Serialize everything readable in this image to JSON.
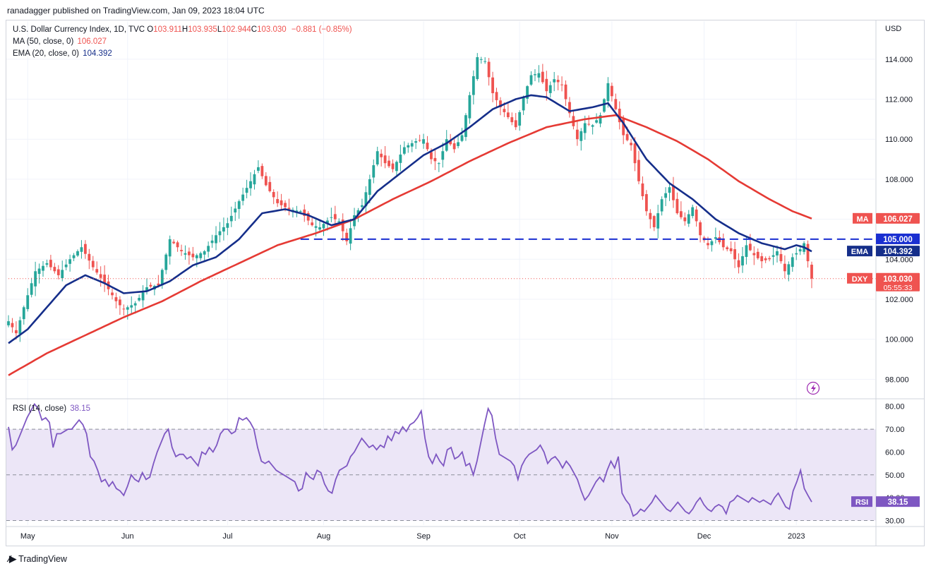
{
  "header": {
    "publisher": "ranadagger published on TradingView.com, Jan 09, 2023 18:04 UTC"
  },
  "legend": {
    "symbol": "U.S. Dollar Currency Index, 1D, TVC",
    "ohlc": [
      {
        "k": "O",
        "v": "103.911"
      },
      {
        "k": "H",
        "v": "103.935"
      },
      {
        "k": "L",
        "v": "102.944"
      },
      {
        "k": "C",
        "v": "103.030"
      }
    ],
    "change": "−0.881 (−0.85%)",
    "ma_label": "MA (50, close, 0)",
    "ma_value": "106.027",
    "ema_label": "EMA (20, close, 0)",
    "ema_value": "104.392",
    "rsi_label": "RSI (14, close)",
    "rsi_value": "38.15"
  },
  "footer": {
    "brand": "TradingView"
  },
  "colors": {
    "up": "#26a69a",
    "down": "#ef5350",
    "ema": "#152e8a",
    "ma": "#e53a34",
    "hline": "#1a2fd1",
    "rsi": "#7e57c2",
    "rsi_band": "#ece6f7"
  },
  "chart_data": [
    {
      "type": "candlestick",
      "currency": "USD",
      "y_ticks": [
        98,
        100,
        102,
        104,
        106,
        108,
        110,
        112,
        114
      ],
      "y_tick_labels": [
        "98.000",
        "100.000",
        "102.000",
        "104.000",
        "106.000",
        "108.000",
        "110.000",
        "112.000",
        "114.000"
      ],
      "ylim": [
        97.2,
        115.9
      ],
      "x_ticks": [
        {
          "label": "May",
          "day": 5
        },
        {
          "label": "Jun",
          "day": 31
        },
        {
          "label": "Jul",
          "day": 57
        },
        {
          "label": "Aug",
          "day": 82
        },
        {
          "label": "Sep",
          "day": 108
        },
        {
          "label": "Oct",
          "day": 133
        },
        {
          "label": "Nov",
          "day": 157
        },
        {
          "label": "Dec",
          "day": 181
        },
        {
          "label": "2023",
          "day": 205
        }
      ],
      "horizontal_line": {
        "value": 105.0,
        "label": "105.000",
        "style": "dashed",
        "from_day": 76
      },
      "price_badges": [
        {
          "name": "MA",
          "value": "106.027",
          "y": 106.027,
          "color": "#ef5350"
        },
        {
          "name": "EMA",
          "value": "104.392",
          "y": 104.392,
          "color": "#152e8a"
        },
        {
          "name": "DXY",
          "value": "103.030",
          "y": 103.03,
          "color": "#ef5350",
          "sub": "05:55:33"
        }
      ],
      "close_anchors": [
        [
          0,
          100.9
        ],
        [
          2,
          100.3
        ],
        [
          4,
          101.6
        ],
        [
          7,
          103.4
        ],
        [
          10,
          103.8
        ],
        [
          13,
          103.2
        ],
        [
          16,
          104.0
        ],
        [
          19,
          104.6
        ],
        [
          22,
          103.6
        ],
        [
          25,
          102.8
        ],
        [
          28,
          101.9
        ],
        [
          30,
          101.5
        ],
        [
          33,
          101.8
        ],
        [
          36,
          102.6
        ],
        [
          39,
          102.7
        ],
        [
          42,
          105.0
        ],
        [
          45,
          104.4
        ],
        [
          48,
          104.1
        ],
        [
          51,
          104.4
        ],
        [
          54,
          105.2
        ],
        [
          57,
          105.8
        ],
        [
          60,
          106.9
        ],
        [
          63,
          107.9
        ],
        [
          65,
          108.6
        ],
        [
          67,
          107.7
        ],
        [
          70,
          106.8
        ],
        [
          73,
          106.5
        ],
        [
          76,
          106.4
        ],
        [
          79,
          105.7
        ],
        [
          81,
          105.6
        ],
        [
          84,
          106.1
        ],
        [
          86,
          105.9
        ],
        [
          88,
          104.9
        ],
        [
          90,
          106.2
        ],
        [
          92,
          106.7
        ],
        [
          94,
          108.0
        ],
        [
          96,
          109.4
        ],
        [
          98,
          108.8
        ],
        [
          100,
          108.5
        ],
        [
          103,
          109.6
        ],
        [
          106,
          109.9
        ],
        [
          108,
          110.0
        ],
        [
          110,
          109.0
        ],
        [
          112,
          108.8
        ],
        [
          114,
          110.0
        ],
        [
          116,
          109.5
        ],
        [
          118,
          110.2
        ],
        [
          120,
          112.2
        ],
        [
          122,
          114.1
        ],
        [
          124,
          113.9
        ],
        [
          126,
          112.3
        ],
        [
          128,
          111.6
        ],
        [
          130,
          111.1
        ],
        [
          132,
          110.6
        ],
        [
          134,
          112.1
        ],
        [
          136,
          113.2
        ],
        [
          138,
          113.3
        ],
        [
          140,
          112.4
        ],
        [
          142,
          113.0
        ],
        [
          144,
          112.7
        ],
        [
          146,
          111.3
        ],
        [
          148,
          110.0
        ],
        [
          150,
          110.8
        ],
        [
          152,
          110.7
        ],
        [
          154,
          111.2
        ],
        [
          156,
          112.8
        ],
        [
          158,
          111.5
        ],
        [
          160,
          110.2
        ],
        [
          162,
          109.7
        ],
        [
          164,
          107.9
        ],
        [
          166,
          106.4
        ],
        [
          168,
          105.6
        ],
        [
          170,
          107.0
        ],
        [
          172,
          107.6
        ],
        [
          174,
          106.3
        ],
        [
          176,
          105.9
        ],
        [
          178,
          106.6
        ],
        [
          180,
          105.2
        ],
        [
          182,
          104.7
        ],
        [
          184,
          105.1
        ],
        [
          186,
          104.6
        ],
        [
          188,
          104.4
        ],
        [
          190,
          103.6
        ],
        [
          192,
          104.7
        ],
        [
          194,
          104.2
        ],
        [
          196,
          103.9
        ],
        [
          198,
          104.0
        ],
        [
          200,
          104.4
        ],
        [
          202,
          103.4
        ],
        [
          204,
          104.1
        ],
        [
          206,
          104.5
        ],
        [
          207,
          104.8
        ],
        [
          208,
          103.9
        ],
        [
          209,
          103.03
        ]
      ],
      "ma50_anchors": [
        [
          0,
          98.2
        ],
        [
          10,
          99.3
        ],
        [
          20,
          100.2
        ],
        [
          30,
          101.1
        ],
        [
          40,
          101.9
        ],
        [
          50,
          102.9
        ],
        [
          60,
          103.8
        ],
        [
          70,
          104.7
        ],
        [
          80,
          105.3
        ],
        [
          90,
          106.0
        ],
        [
          100,
          107.0
        ],
        [
          110,
          107.9
        ],
        [
          120,
          108.9
        ],
        [
          130,
          109.8
        ],
        [
          140,
          110.6
        ],
        [
          150,
          111.0
        ],
        [
          158,
          111.2
        ],
        [
          166,
          110.6
        ],
        [
          174,
          109.9
        ],
        [
          182,
          109.0
        ],
        [
          190,
          107.9
        ],
        [
          198,
          107.0
        ],
        [
          204,
          106.4
        ],
        [
          209,
          106.03
        ]
      ],
      "ema20_anchors": [
        [
          0,
          99.8
        ],
        [
          5,
          100.5
        ],
        [
          10,
          101.6
        ],
        [
          15,
          102.7
        ],
        [
          20,
          103.2
        ],
        [
          25,
          102.8
        ],
        [
          30,
          102.3
        ],
        [
          36,
          102.4
        ],
        [
          42,
          102.9
        ],
        [
          48,
          103.7
        ],
        [
          54,
          104.1
        ],
        [
          60,
          105.0
        ],
        [
          66,
          106.3
        ],
        [
          72,
          106.5
        ],
        [
          78,
          106.2
        ],
        [
          84,
          105.7
        ],
        [
          90,
          106.0
        ],
        [
          96,
          107.4
        ],
        [
          102,
          108.3
        ],
        [
          108,
          109.2
        ],
        [
          114,
          109.8
        ],
        [
          120,
          110.6
        ],
        [
          126,
          111.5
        ],
        [
          132,
          112.0
        ],
        [
          136,
          112.2
        ],
        [
          140,
          112.1
        ],
        [
          146,
          111.4
        ],
        [
          152,
          111.6
        ],
        [
          156,
          111.8
        ],
        [
          160,
          110.8
        ],
        [
          166,
          109.0
        ],
        [
          172,
          107.8
        ],
        [
          178,
          107.0
        ],
        [
          184,
          106.0
        ],
        [
          190,
          105.3
        ],
        [
          196,
          104.8
        ],
        [
          202,
          104.5
        ],
        [
          205,
          104.7
        ],
        [
          207,
          104.6
        ],
        [
          209,
          104.39
        ]
      ]
    },
    {
      "type": "line",
      "name": "RSI (14, close)",
      "y_ticks": [
        30,
        40,
        50,
        60,
        70,
        80
      ],
      "y_tick_labels": [
        "30.00",
        "40.00",
        "50.00",
        "60.00",
        "70.00",
        "80.00"
      ],
      "ylim": [
        28,
        83
      ],
      "band": [
        30,
        70
      ],
      "midline": 50,
      "last_value": "38.15",
      "values": [
        71,
        61,
        63,
        67,
        71,
        75,
        78,
        81,
        79,
        74,
        75,
        73,
        62,
        68,
        68,
        69,
        70,
        70,
        72,
        74,
        72,
        68,
        58,
        56,
        52,
        47,
        48,
        45,
        47,
        44,
        43,
        41,
        45,
        50,
        48,
        47,
        51,
        48,
        49,
        55,
        60,
        64,
        68,
        70,
        62,
        58,
        59,
        59,
        57,
        58,
        56,
        54,
        60,
        59,
        62,
        60,
        63,
        68,
        70,
        70,
        68,
        69,
        75,
        74,
        75,
        73,
        70,
        62,
        56,
        55,
        56,
        54,
        52,
        51,
        50,
        49,
        48,
        47,
        43,
        44,
        51,
        49,
        48,
        52,
        51,
        46,
        43,
        42,
        48,
        52,
        53,
        54,
        58,
        60,
        63,
        66,
        64,
        62,
        63,
        61,
        63,
        62,
        67,
        65,
        69,
        68,
        71,
        69,
        72,
        73,
        75,
        78,
        66,
        58,
        55,
        59,
        56,
        54,
        61,
        62,
        57,
        58,
        60,
        54,
        55,
        50,
        56,
        64,
        72,
        79,
        76,
        66,
        59,
        58,
        57,
        56,
        54,
        48,
        54,
        57,
        59,
        60,
        61,
        63,
        60,
        55,
        57,
        58,
        56,
        53,
        56,
        54,
        51,
        48,
        43,
        39,
        41,
        44,
        47,
        49,
        47,
        52,
        56,
        53,
        58,
        42,
        39,
        37,
        32,
        33,
        35,
        34,
        36,
        38,
        41,
        39,
        37,
        35,
        34,
        36,
        38,
        36,
        34,
        33,
        35,
        38,
        40,
        37,
        35,
        34,
        36,
        37,
        36,
        33,
        38,
        39,
        41,
        40,
        39,
        38,
        40,
        39,
        38,
        39,
        38,
        37,
        40,
        42,
        39,
        36,
        35,
        43,
        47,
        52,
        44,
        41,
        38.15
      ]
    }
  ]
}
